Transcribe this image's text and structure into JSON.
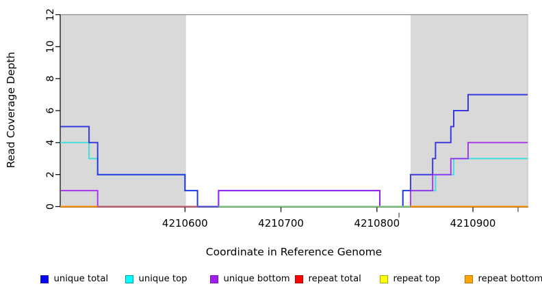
{
  "axes": {
    "xlabel": "Coordinate in Reference Genome",
    "ylabel": "Read Coverage Depth"
  },
  "legend": {
    "items": [
      {
        "label": "unique total",
        "fill": "#0000FF",
        "border": "#2020A8"
      },
      {
        "label": "unique top",
        "fill": "#00FFFF",
        "border": "#00A0A0"
      },
      {
        "label": "unique bottom",
        "fill": "#A020F0",
        "border": "#7718B6"
      },
      {
        "label": "repeat total",
        "fill": "#FF0000",
        "border": "#A80000"
      },
      {
        "label": "repeat top",
        "fill": "#FFFF00",
        "border": "#A8A800"
      },
      {
        "label": "repeat bottom",
        "fill": "#FFA500",
        "border": "#B87400"
      }
    ]
  },
  "chart_data": {
    "type": "line",
    "subtype": "step-post",
    "title": "",
    "xlabel": "Coordinate in Reference Genome",
    "ylabel": "Read Coverage Depth",
    "xlim": [
      4210470,
      4210957
    ],
    "ylim": [
      0,
      12
    ],
    "xticks": [
      4210600,
      4210700,
      4210800,
      4210900
    ],
    "xtick_labels": [
      "4210600",
      "4210700",
      "4210800",
      "4210900"
    ],
    "yticks": [
      0,
      2,
      4,
      6,
      8,
      10,
      12
    ],
    "grid": false,
    "legend_position": "bottom",
    "shaded_regions": [
      {
        "x_from": 4210470,
        "x_to": 4210601,
        "color": "#D9D9D9"
      },
      {
        "x_from": 4210835,
        "x_to": 4210957,
        "color": "#D9D9D9"
      }
    ],
    "series": [
      {
        "name": "repeat total",
        "color": "#DD0000",
        "steps": [
          [
            4210470,
            0
          ],
          [
            4210957,
            0
          ]
        ]
      },
      {
        "name": "repeat top",
        "color": "#EEEE00",
        "steps": [
          [
            4210470,
            0
          ],
          [
            4210957,
            0
          ]
        ]
      },
      {
        "name": "repeat bottom",
        "color": "#FF9100",
        "steps": [
          [
            4210470,
            0
          ],
          [
            4210957,
            0
          ]
        ]
      },
      {
        "name": "unique top",
        "color": "#2EDEDE",
        "steps": [
          [
            4210470,
            4
          ],
          [
            4210500,
            3
          ],
          [
            4210509,
            2
          ],
          [
            4210600,
            1
          ],
          [
            4210613,
            0
          ],
          [
            4210827,
            1
          ],
          [
            4210861,
            2
          ],
          [
            4210880,
            3
          ],
          [
            4210957,
            3
          ]
        ]
      },
      {
        "name": "unique total",
        "color": "#2222E0",
        "steps": [
          [
            4210470,
            5
          ],
          [
            4210500,
            4
          ],
          [
            4210509,
            2
          ],
          [
            4210600,
            1
          ],
          [
            4210613,
            0
          ],
          [
            4210635,
            1
          ],
          [
            4210803,
            0
          ],
          [
            4210827,
            1
          ],
          [
            4210835,
            2
          ],
          [
            4210858,
            3
          ],
          [
            4210861,
            4
          ],
          [
            4210877,
            5
          ],
          [
            4210880,
            6
          ],
          [
            4210895,
            7
          ],
          [
            4210957,
            7
          ]
        ]
      },
      {
        "name": "unique bottom",
        "color": "#A020F0",
        "steps": [
          [
            4210470,
            1
          ],
          [
            4210509,
            0
          ],
          [
            4210635,
            1
          ],
          [
            4210803,
            0
          ],
          [
            4210835,
            1
          ],
          [
            4210858,
            2
          ],
          [
            4210877,
            3
          ],
          [
            4210895,
            4
          ],
          [
            4210957,
            4
          ]
        ]
      }
    ],
    "baseline_overlays": [
      {
        "x_from": 4210470,
        "x_to": 4210509,
        "color": "#FF9100"
      },
      {
        "x_from": 4210509,
        "x_to": 4210613,
        "color": "#C4607A"
      },
      {
        "x_from": 4210613,
        "x_to": 4210635,
        "color": "#5B54D6"
      },
      {
        "x_from": 4210635,
        "x_to": 4210835,
        "color": "#7FC87F"
      },
      {
        "x_from": 4210835,
        "x_to": 4210957,
        "color": "#FF9100"
      }
    ],
    "extra_axis_marks": [
      4210823,
      4210947
    ]
  }
}
